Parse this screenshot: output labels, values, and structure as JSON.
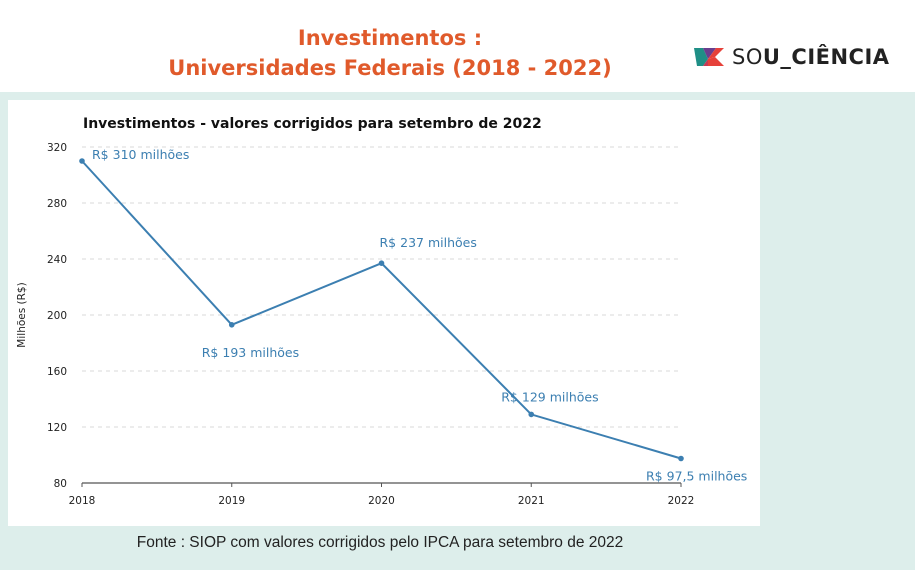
{
  "header": {
    "title_line1": "Investimentos :",
    "title_line2": "Universidades Federais (2018 - 2022)",
    "logo_text_light": "SO",
    "logo_text_bold": "U_CIÊNCIA",
    "title_color": "#e05a2b"
  },
  "source": "Fonte : SIOP com valores corrigidos pelo IPCA para setembro de 2022",
  "chart_data": {
    "type": "line",
    "title": "Investimentos - valores corrigidos para setembro de 2022",
    "xlabel": "",
    "ylabel": "Milhões (R$)",
    "categories": [
      "2018",
      "2019",
      "2020",
      "2021",
      "2022"
    ],
    "series": [
      {
        "name": "Investimentos",
        "values": [
          310,
          193,
          237,
          129,
          97.5
        ],
        "labels": [
          "R$ 310 milhões",
          "R$ 193 milhões",
          "R$ 237 milhões",
          "R$ 129 milhões",
          "R$ 97,5 milhões"
        ],
        "color": "#3c7fb1"
      }
    ],
    "ylim": [
      80,
      320
    ],
    "yticks": [
      80,
      120,
      160,
      200,
      240,
      280,
      320
    ],
    "grid": true,
    "legend": "none"
  }
}
